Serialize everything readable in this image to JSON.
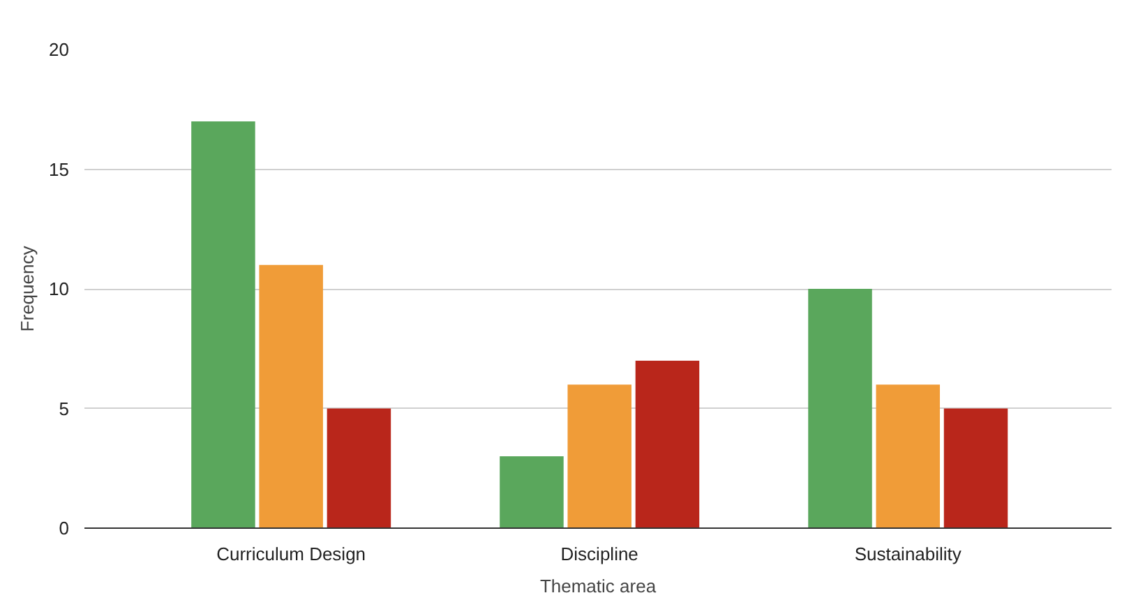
{
  "chart_data": {
    "type": "bar",
    "xlabel": "Thematic area",
    "ylabel": "Frequency",
    "categories": [
      "Curriculum Design",
      "Discipline",
      "Sustainability"
    ],
    "series": [
      {
        "color": "#5aa75c",
        "values": [
          17,
          3,
          10
        ]
      },
      {
        "color": "#f09c38",
        "values": [
          11,
          6,
          6
        ]
      },
      {
        "color": "#b9261b",
        "values": [
          5,
          7,
          5
        ]
      }
    ],
    "ylim": [
      0,
      20
    ],
    "yticks": [
      0,
      5,
      10,
      15,
      20
    ],
    "grid": "y"
  }
}
